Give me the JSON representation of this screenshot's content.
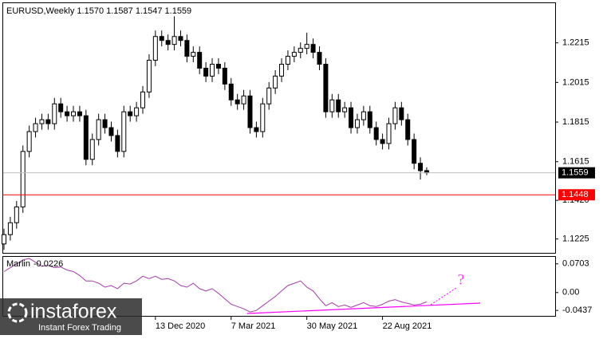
{
  "chart_data": [
    {
      "type": "candlestick",
      "title": "EURUSD,Weekly  1.1570 1.1587 1.1547 1.1559",
      "categories": [
        null,
        null,
        null,
        null,
        null,
        null,
        null,
        null,
        null,
        null,
        null,
        null,
        null,
        null,
        null,
        null,
        null,
        null,
        null,
        null,
        null,
        null,
        null,
        null,
        "13 Dec 2020",
        null,
        null,
        null,
        null,
        null,
        null,
        null,
        null,
        null,
        null,
        null,
        "7 Mar 2021",
        null,
        null,
        null,
        null,
        null,
        null,
        null,
        null,
        null,
        null,
        null,
        "30 May 2021",
        null,
        null,
        null,
        null,
        null,
        null,
        null,
        null,
        null,
        null,
        null,
        "22 Aug 2021",
        null,
        null,
        null,
        null,
        null,
        null,
        null
      ],
      "open": [
        1.12,
        1.1247,
        1.1307,
        1.1387,
        1.1667,
        1.1767,
        1.1807,
        1.1827,
        1.1807,
        1.1907,
        1.1867,
        1.1847,
        1.1867,
        1.1847,
        1.1627,
        1.1727,
        1.1827,
        1.1787,
        1.1747,
        1.1667,
        1.1867,
        1.1847,
        1.1887,
        1.1967,
        1.2127,
        1.2247,
        1.2227,
        1.2207,
        1.2247,
        1.2227,
        1.2147,
        1.2167,
        1.2087,
        1.2047,
        1.2107,
        1.2087,
        1.2007,
        1.1927,
        1.1907,
        1.1947,
        1.1787,
        1.1767,
        1.1907,
        1.1987,
        1.2047,
        1.2107,
        1.2147,
        1.2167,
        1.2187,
        1.2207,
        1.2167,
        1.2107,
        1.1867,
        1.1927,
        1.1867,
        1.1887,
        1.1787,
        1.1827,
        1.1867,
        1.1787,
        1.1727,
        1.1707,
        1.1807,
        1.1887,
        1.1827,
        1.1727,
        1.1607,
        1.157
      ],
      "high": [
        1.1277,
        1.1337,
        1.1417,
        1.1697,
        1.1797,
        1.1837,
        1.1857,
        1.1857,
        1.1937,
        1.1937,
        1.1897,
        1.1897,
        1.1897,
        1.1877,
        1.1757,
        1.1857,
        1.1857,
        1.1817,
        1.1777,
        1.1897,
        1.1897,
        1.1917,
        1.1997,
        1.2157,
        1.2277,
        1.2277,
        1.2257,
        1.2349,
        1.2277,
        1.2257,
        1.2197,
        1.2197,
        1.2117,
        1.2137,
        1.2137,
        1.2117,
        1.2037,
        1.1957,
        1.1977,
        1.1977,
        1.1817,
        1.1937,
        1.2017,
        1.2077,
        1.2137,
        1.2177,
        1.2197,
        1.2217,
        1.2266,
        1.2237,
        1.2197,
        1.2137,
        1.1957,
        1.1957,
        1.1917,
        1.1917,
        1.1857,
        1.1897,
        1.1897,
        1.1817,
        1.1757,
        1.1837,
        1.1917,
        1.1917,
        1.1857,
        1.1757,
        1.1637,
        1.1587
      ],
      "low": [
        1.117,
        1.1217,
        1.1277,
        1.1357,
        1.1637,
        1.1737,
        1.1777,
        1.1777,
        1.1777,
        1.1837,
        1.1817,
        1.1817,
        1.1817,
        1.1597,
        1.1597,
        1.1697,
        1.1757,
        1.1717,
        1.1637,
        1.1637,
        1.1817,
        1.1817,
        1.1857,
        1.1937,
        1.2097,
        1.2197,
        1.2177,
        1.2177,
        1.2197,
        1.2117,
        1.2117,
        1.2057,
        1.2017,
        1.2017,
        1.2057,
        1.1977,
        1.1897,
        1.1877,
        1.1877,
        1.1757,
        1.1737,
        1.1737,
        1.1877,
        1.1957,
        1.2017,
        1.2077,
        1.2117,
        1.2137,
        1.2157,
        1.2137,
        1.2077,
        1.1837,
        1.1837,
        1.1837,
        1.1837,
        1.1757,
        1.1757,
        1.1797,
        1.1757,
        1.1697,
        1.1677,
        1.1677,
        1.1777,
        1.1797,
        1.1697,
        1.1577,
        1.1525,
        1.1547
      ],
      "close": [
        1.1247,
        1.1307,
        1.1387,
        1.1667,
        1.1767,
        1.1807,
        1.1827,
        1.1807,
        1.1907,
        1.1867,
        1.1847,
        1.1867,
        1.1847,
        1.1627,
        1.1727,
        1.1827,
        1.1787,
        1.1747,
        1.1667,
        1.1867,
        1.1847,
        1.1887,
        1.1967,
        1.2127,
        1.2247,
        1.2227,
        1.2207,
        1.2247,
        1.2227,
        1.2147,
        1.2167,
        1.2087,
        1.2047,
        1.2107,
        1.2087,
        1.2007,
        1.1927,
        1.1907,
        1.1947,
        1.1787,
        1.1767,
        1.1907,
        1.1987,
        1.2047,
        1.2107,
        1.2147,
        1.2167,
        1.2187,
        1.2207,
        1.2167,
        1.2107,
        1.1867,
        1.1927,
        1.1867,
        1.1887,
        1.1787,
        1.1827,
        1.1867,
        1.1787,
        1.1727,
        1.1707,
        1.1807,
        1.1887,
        1.1827,
        1.1727,
        1.1607,
        1.157,
        1.1559
      ],
      "up_color": "#ffffff",
      "down_color": "#000000",
      "ylim": [
        1.1155,
        1.2415
      ],
      "yticks": [
        1.2215,
        1.2015,
        1.1815,
        1.1615,
        {
          "value": 1.142,
          "label": "1.1420"
        },
        1.1225
      ],
      "levels": [
        1.1448
      ],
      "level_color": "#ff0000"
    },
    {
      "type": "line",
      "series": [
        {
          "name": "Marlin",
          "color": "#a43ca8",
          "values": [
            0.0513,
            0.0608,
            0.0703,
            0.0798,
            0.0837,
            0.0741,
            0.0646,
            0.0665,
            0.0608,
            0.0627,
            0.0551,
            0.0513,
            0.0418,
            0.0285,
            0.0285,
            0.0228,
            0.0133,
            0.0171,
            0.0095,
            0.0228,
            0.0209,
            0.0285,
            0.0399,
            0.0342,
            0.0399,
            0.0323,
            0.0342,
            0.0285,
            0.0171,
            0.0133,
            0.0228,
            0.0095,
            0.0038,
            0.0095,
            -0.0019,
            -0.0152,
            -0.0285,
            -0.0342,
            -0.0399,
            -0.0475,
            -0.0437,
            -0.0323,
            -0.0209,
            -0.0095,
            0.0038,
            0.0171,
            0.0228,
            0.0285,
            0.0133,
            0.0038,
            -0.0152,
            -0.0323,
            -0.0247,
            -0.0342,
            -0.0304,
            -0.0361,
            -0.0304,
            -0.0247,
            -0.0323,
            -0.0342,
            -0.0285,
            -0.0209,
            -0.0171,
            -0.0228,
            -0.0266,
            -0.0304,
            -0.0285,
            -0.0226
          ]
        }
      ],
      "ylim": [
        -0.057,
        0.0874
      ],
      "yticks": [
        0.0703,
        {
          "value": 0,
          "label": "0.00"
        },
        -0.0437
      ],
      "annotation": "?"
    }
  ],
  "watermark": {
    "brand": "instaforex",
    "tagline": "Instant Forex Trading"
  }
}
